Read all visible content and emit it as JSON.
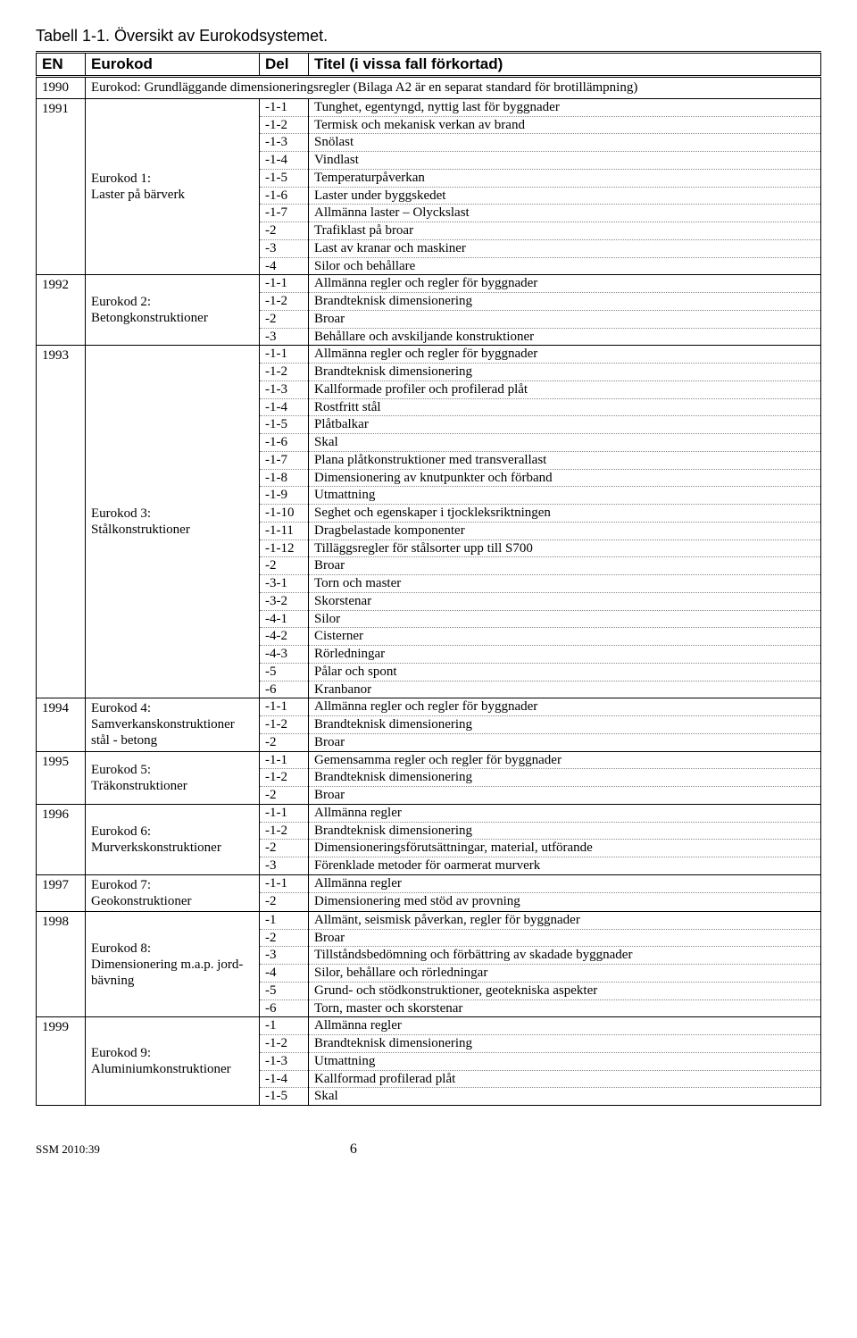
{
  "caption": "Tabell 1-1. Översikt av Eurokodsystemet.",
  "headers": {
    "en": "EN",
    "eurokod": "Eurokod",
    "del": "Del",
    "titel": "Titel (i vissa fall förkortad)"
  },
  "groups": [
    {
      "en": "1990",
      "eu_span": "Eurokod: Grundläggande dimensioneringsregler (Bilaga A2 är en separat standard för brotillämpning)",
      "rows": []
    },
    {
      "en": "1991",
      "eu": "Eurokod 1:\nLaster på bärverk",
      "rows": [
        {
          "del": "-1-1",
          "tit": "Tunghet, egentyngd, nyttig last för byggnader"
        },
        {
          "del": "-1-2",
          "tit": "Termisk och mekanisk verkan av brand"
        },
        {
          "del": "-1-3",
          "tit": "Snölast"
        },
        {
          "del": "-1-4",
          "tit": "Vindlast"
        },
        {
          "del": "-1-5",
          "tit": "Temperaturpåverkan"
        },
        {
          "del": "-1-6",
          "tit": "Laster under byggskedet"
        },
        {
          "del": "-1-7",
          "tit": "Allmänna laster – Olyckslast"
        },
        {
          "del": "-2",
          "tit": "Trafiklast på broar"
        },
        {
          "del": "-3",
          "tit": "Last av kranar och maskiner"
        },
        {
          "del": "-4",
          "tit": "Silor och behållare"
        }
      ]
    },
    {
      "en": "1992",
      "eu": "Eurokod 2:\nBetongkonstruktioner",
      "rows": [
        {
          "del": "-1-1",
          "tit": "Allmänna regler och regler för byggnader"
        },
        {
          "del": "-1-2",
          "tit": "Brandteknisk dimensionering"
        },
        {
          "del": "-2",
          "tit": "Broar"
        },
        {
          "del": "-3",
          "tit": "Behållare och avskiljande konstruktioner"
        }
      ]
    },
    {
      "en": "1993",
      "eu": "Eurokod 3:\nStålkonstruktioner",
      "rows": [
        {
          "del": "-1-1",
          "tit": "Allmänna regler och regler för byggnader"
        },
        {
          "del": "-1-2",
          "tit": "Brandteknisk dimensionering"
        },
        {
          "del": "-1-3",
          "tit": "Kallformade profiler och profilerad plåt"
        },
        {
          "del": "-1-4",
          "tit": "Rostfritt stål"
        },
        {
          "del": "-1-5",
          "tit": "Plåtbalkar"
        },
        {
          "del": "-1-6",
          "tit": "Skal"
        },
        {
          "del": "-1-7",
          "tit": "Plana plåtkonstruktioner med  transverallast"
        },
        {
          "del": "-1-8",
          "tit": "Dimensionering av knutpunkter och förband"
        },
        {
          "del": "-1-9",
          "tit": "Utmattning"
        },
        {
          "del": "-1-10",
          "tit": "Seghet och egenskaper i tjockleksriktningen"
        },
        {
          "del": "-1-11",
          "tit": "Dragbelastade komponenter"
        },
        {
          "del": "-1-12",
          "tit": "Tilläggsregler för stålsorter upp till S700"
        },
        {
          "del": "-2",
          "tit": "Broar"
        },
        {
          "del": "-3-1",
          "tit": "Torn och master"
        },
        {
          "del": "-3-2",
          "tit": "Skorstenar"
        },
        {
          "del": "-4-1",
          "tit": "Silor"
        },
        {
          "del": "-4-2",
          "tit": "Cisterner"
        },
        {
          "del": "-4-3",
          "tit": "Rörledningar"
        },
        {
          "del": "-5",
          "tit": "Pålar och spont"
        },
        {
          "del": "-6",
          "tit": "Kranbanor"
        }
      ]
    },
    {
      "en": "1994",
      "eu": "Eurokod 4:\nSamverkanskonstruktioner\nstål - betong",
      "rows": [
        {
          "del": "-1-1",
          "tit": "Allmänna regler och regler för byggnader"
        },
        {
          "del": "-1-2",
          "tit": "Brandteknisk dimensionering"
        },
        {
          "del": "-2",
          "tit": "Broar"
        }
      ]
    },
    {
      "en": "1995",
      "eu": "Eurokod 5:\nTräkonstruktioner",
      "rows": [
        {
          "del": "-1-1",
          "tit": "Gemensamma regler och regler för byggnader"
        },
        {
          "del": "-1-2",
          "tit": "Brandteknisk dimensionering"
        },
        {
          "del": "-2",
          "tit": "Broar"
        }
      ]
    },
    {
      "en": "1996",
      "eu": "Eurokod 6:\nMurverkskonstruktioner",
      "rows": [
        {
          "del": "-1-1",
          "tit": "Allmänna regler"
        },
        {
          "del": "-1-2",
          "tit": "Brandteknisk dimensionering"
        },
        {
          "del": "-2",
          "tit": "Dimensioneringsförutsättningar, material, utförande"
        },
        {
          "del": "-3",
          "tit": "Förenklade metoder för oarmerat murverk"
        }
      ]
    },
    {
      "en": "1997",
      "eu": "Eurokod 7:\nGeokonstruktioner",
      "rows": [
        {
          "del": "-1-1",
          "tit": "Allmänna regler"
        },
        {
          "del": "-2",
          "tit": "Dimensionering med stöd av provning"
        }
      ]
    },
    {
      "en": "1998",
      "eu": "Eurokod 8:\nDimensionering m.a.p. jord-\nbävning",
      "rows": [
        {
          "del": "-1",
          "tit": "Allmänt, seismisk påverkan, regler för byggnader"
        },
        {
          "del": "-2",
          "tit": "Broar"
        },
        {
          "del": "-3",
          "tit": "Tillståndsbedömning och förbättring av skadade byggnader"
        },
        {
          "del": "-4",
          "tit": "Silor, behållare och rörledningar"
        },
        {
          "del": "-5",
          "tit": "Grund- och stödkonstruktioner, geotekniska aspekter"
        },
        {
          "del": "-6",
          "tit": "Torn, master och skorstenar"
        }
      ]
    },
    {
      "en": "1999",
      "eu": "Eurokod 9:\nAluminiumkonstruktioner",
      "rows": [
        {
          "del": "-1",
          "tit": "Allmänna regler"
        },
        {
          "del": "-1-2",
          "tit": "Brandteknisk dimensionering"
        },
        {
          "del": "-1-3",
          "tit": "Utmattning"
        },
        {
          "del": "-1-4",
          "tit": "Kallformad profilerad plåt"
        },
        {
          "del": "-1-5",
          "tit": "Skal"
        }
      ]
    }
  ],
  "footer": {
    "left": "SSM 2010:39",
    "page": "6"
  }
}
